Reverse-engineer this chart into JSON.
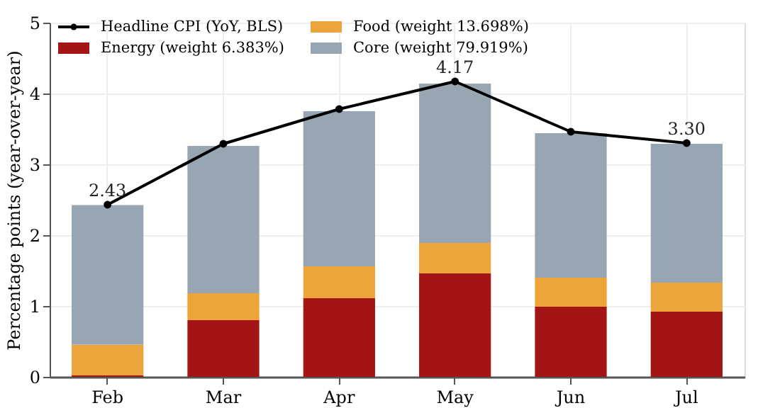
{
  "chart_data": {
    "type": "bar",
    "stacked": true,
    "ylabel": "Percentage points (year-over-year)",
    "categories": [
      "Feb",
      "Mar",
      "Apr",
      "May",
      "Jun",
      "Jul"
    ],
    "series": [
      {
        "name": "Energy (weight 6.383%)",
        "color": "#a31515",
        "values": [
          0.02,
          0.8,
          1.11,
          1.46,
          0.99,
          0.92
        ]
      },
      {
        "name": "Food (weight 13.698%)",
        "color": "#eba53a",
        "values": [
          0.435,
          0.38,
          0.45,
          0.43,
          0.41,
          0.41
        ]
      },
      {
        "name": "Core (weight 79.919%)",
        "color": "#98a6b4",
        "values": [
          1.97,
          2.08,
          2.19,
          2.25,
          2.04,
          1.96
        ]
      },
      {
        "name": "Headline CPI (YoY, BLS)",
        "type": "line",
        "color": "#000000",
        "marker": "circle",
        "values": [
          2.43,
          3.29,
          3.78,
          4.17,
          3.46,
          3.3
        ],
        "value_labels": [
          "2.43",
          null,
          null,
          "4.17",
          null,
          "3.30"
        ]
      }
    ],
    "ylim": [
      0,
      5
    ],
    "yticks": [
      0,
      1,
      2,
      3,
      4,
      5
    ],
    "grid": true,
    "legend": "top left"
  }
}
